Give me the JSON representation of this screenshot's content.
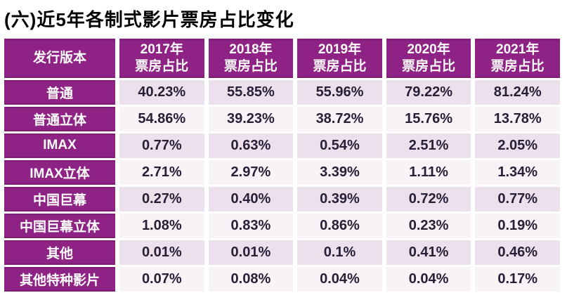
{
  "page": {
    "title": "(六)近5年各制式影片票房占比变化"
  },
  "table": {
    "header": {
      "row_label": "发行版本",
      "sub_label": "票房占比",
      "year_columns": [
        {
          "year": "2017年",
          "label": "票房占比"
        },
        {
          "year": "2018年",
          "label": "票房占比"
        },
        {
          "year": "2019年",
          "label": "票房占比"
        },
        {
          "year": "2020年",
          "label": "票房占比"
        },
        {
          "year": "2021年",
          "label": "票房占比"
        }
      ]
    },
    "rows": [
      {
        "label": "普通",
        "values": [
          "40.23%",
          "55.85%",
          "55.96%",
          "79.22%",
          "81.24%"
        ]
      },
      {
        "label": "普通立体",
        "values": [
          "54.86%",
          "39.23%",
          "38.72%",
          "15.76%",
          "13.78%"
        ]
      },
      {
        "label": "IMAX",
        "values": [
          "0.77%",
          "0.63%",
          "0.54%",
          "2.51%",
          "2.05%"
        ]
      },
      {
        "label": "IMAX立体",
        "values": [
          "2.71%",
          "2.97%",
          "3.39%",
          "1.11%",
          "1.34%"
        ]
      },
      {
        "label": "中国巨幕",
        "values": [
          "0.27%",
          "0.40%",
          "0.39%",
          "0.72%",
          "0.77%"
        ]
      },
      {
        "label": "中国巨幕立体",
        "values": [
          "1.08%",
          "0.83%",
          "0.86%",
          "0.23%",
          "0.19%"
        ]
      },
      {
        "label": "其他",
        "values": [
          "0.01%",
          "0.01%",
          "0.1%",
          "0.41%",
          "0.46%"
        ]
      },
      {
        "label": "其他特种影片",
        "values": [
          "0.07%",
          "0.08%",
          "0.04%",
          "0.04%",
          "0.17%"
        ]
      }
    ]
  },
  "colors": {
    "header_bg": "#8e2285",
    "header_border": "#7d1d73",
    "row_odd_bg": "#ebe0eb",
    "row_even_bg": "#f7f3f7",
    "data_text": "#272038",
    "header_text": "#ffffff",
    "title_text": "#000000"
  }
}
